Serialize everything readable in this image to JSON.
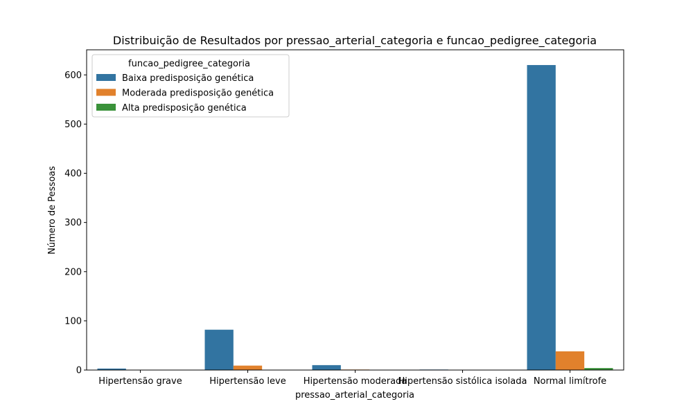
{
  "chart_data": {
    "type": "bar",
    "title": "Distribuição de Resultados por pressao_arterial_categoria e funcao_pedigree_categoria",
    "xlabel": "pressao_arterial_categoria",
    "ylabel": "Número de Pessoas",
    "categories": [
      "Hipertensão grave",
      "Hipertensão leve",
      "Hipertensão moderada",
      "Hipertensão sistólica isolada",
      "Normal limítrofe"
    ],
    "series": [
      {
        "name": "Baixa predisposição genética",
        "color": "#3274a1",
        "values": [
          3,
          82,
          10,
          1,
          620
        ]
      },
      {
        "name": "Moderada predisposição genética",
        "color": "#e1812c",
        "values": [
          0,
          9,
          1,
          0,
          38
        ]
      },
      {
        "name": "Alta predisposição genética",
        "color": "#3a923a",
        "values": [
          0,
          0,
          0,
          0,
          4
        ]
      }
    ],
    "legend_title": "funcao_pedigree_categoria",
    "legend_position": "top-left",
    "ylim": [
      0,
      651
    ],
    "yticks": [
      0,
      100,
      200,
      300,
      400,
      500,
      600
    ],
    "grid": false
  }
}
